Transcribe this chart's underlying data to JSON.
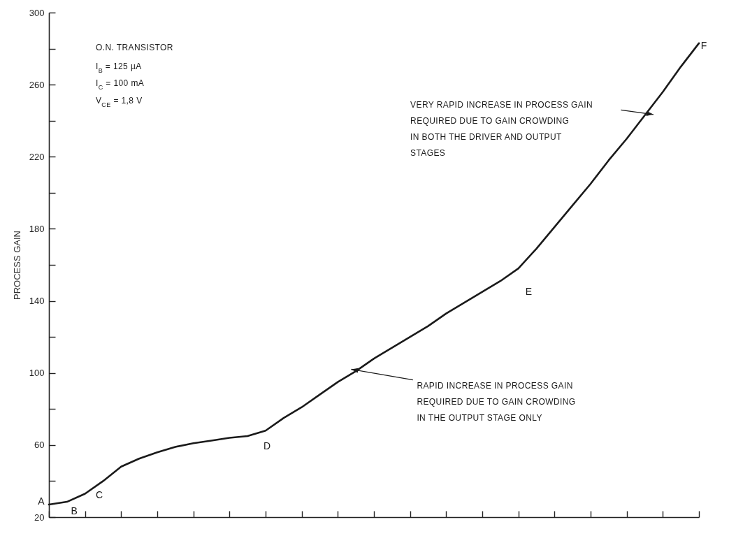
{
  "chart_data": {
    "type": "line",
    "ylabel": "PROCESS GAIN",
    "categories": [
      null,
      null,
      null,
      null,
      null,
      null,
      null,
      null,
      null,
      null,
      null,
      null,
      null,
      null,
      null,
      null,
      null,
      null,
      null,
      null,
      null,
      null,
      null,
      null,
      null,
      null,
      null,
      null,
      null,
      null,
      null,
      null,
      null,
      null,
      null,
      null,
      null
    ],
    "series": [
      {
        "color": "#1a1a1a",
        "values": [
          27,
          28.5,
          33,
          40,
          48,
          52.5,
          56,
          59,
          61,
          62.5,
          64,
          65,
          68,
          75,
          81,
          88,
          95,
          101,
          108,
          114,
          120,
          126,
          133,
          139,
          145,
          151,
          158,
          169,
          181,
          193,
          205,
          218,
          230,
          243,
          256,
          270,
          283
        ]
      }
    ],
    "ylim": [
      20,
      300
    ],
    "yticks": [
      20,
      {
        "value": 40,
        "label": null
      },
      60,
      {
        "value": 80,
        "label": null
      },
      100,
      {
        "value": 120,
        "label": null
      },
      140,
      {
        "value": 160,
        "label": null
      },
      180,
      {
        "value": 200,
        "label": null
      },
      220,
      {
        "value": 240,
        "label": null
      },
      260,
      {
        "value": 280,
        "label": null
      },
      300
    ],
    "tick_labels": "y",
    "grid": false,
    "marker": "none",
    "line_style": "solid",
    "annotations": [
      "O.N.  TRANSISTOR",
      "I$_{B}$  = 125 µA",
      "I$_{C}$  = 100 mA",
      "V$_{CE}$ = 1,8 V",
      "VERY RAPID INCREASE IN PROCESS GAIN\nREQUIRED DUE TO GAIN CROWDING\nIN BOTH THE DRIVER AND OUTPUT\nSTAGES",
      "RAPID INCREASE IN PROCESS GAIN\nREQUIRED DUE TO GAIN CROWDING\nIN THE OUTPUT STAGE ONLY",
      "A",
      "B",
      "C",
      "D",
      "E",
      "F"
    ]
  }
}
